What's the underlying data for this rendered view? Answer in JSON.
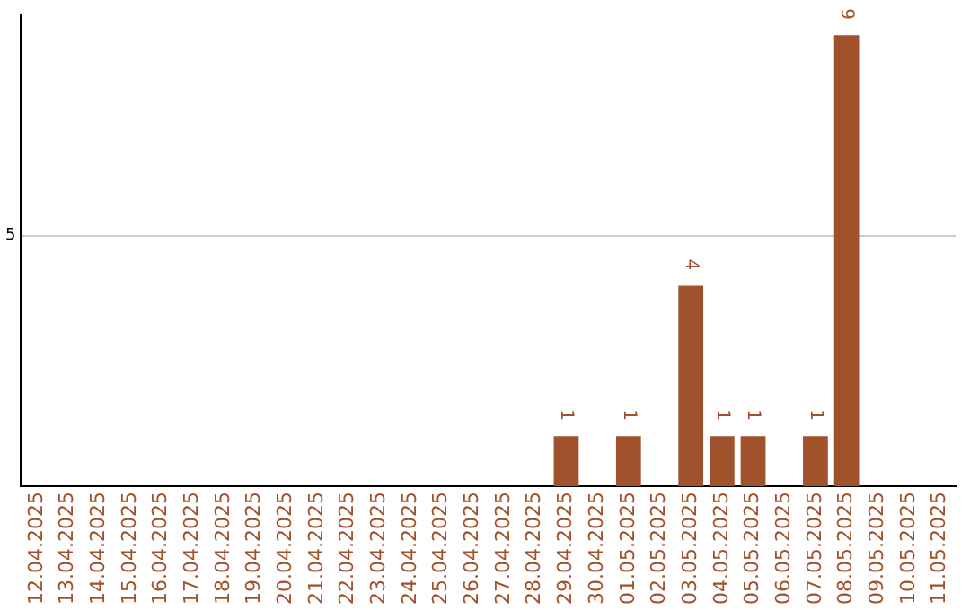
{
  "chart_data": {
    "type": "bar",
    "categories": [
      "12.04.2025",
      "13.04.2025",
      "14.04.2025",
      "15.04.2025",
      "16.04.2025",
      "17.04.2025",
      "18.04.2025",
      "19.04.2025",
      "20.04.2025",
      "21.04.2025",
      "22.04.2025",
      "23.04.2025",
      "24.04.2025",
      "25.04.2025",
      "26.04.2025",
      "27.04.2025",
      "28.04.2025",
      "29.04.2025",
      "30.04.2025",
      "01.05.2025",
      "02.05.2025",
      "03.05.2025",
      "04.05.2025",
      "05.05.2025",
      "06.05.2025",
      "07.05.2025",
      "08.05.2025",
      "09.05.2025",
      "10.05.2025",
      "11.05.2025"
    ],
    "values": [
      null,
      null,
      null,
      null,
      null,
      null,
      null,
      null,
      null,
      null,
      null,
      null,
      null,
      null,
      null,
      null,
      null,
      1,
      null,
      1,
      null,
      4,
      1,
      1,
      null,
      1,
      9,
      null,
      null,
      null
    ],
    "color": "#a0522d",
    "ylim": [
      0,
      9.4
    ],
    "yticks": [
      5
    ],
    "grid": "y",
    "data_labels": true,
    "legend": false
  }
}
